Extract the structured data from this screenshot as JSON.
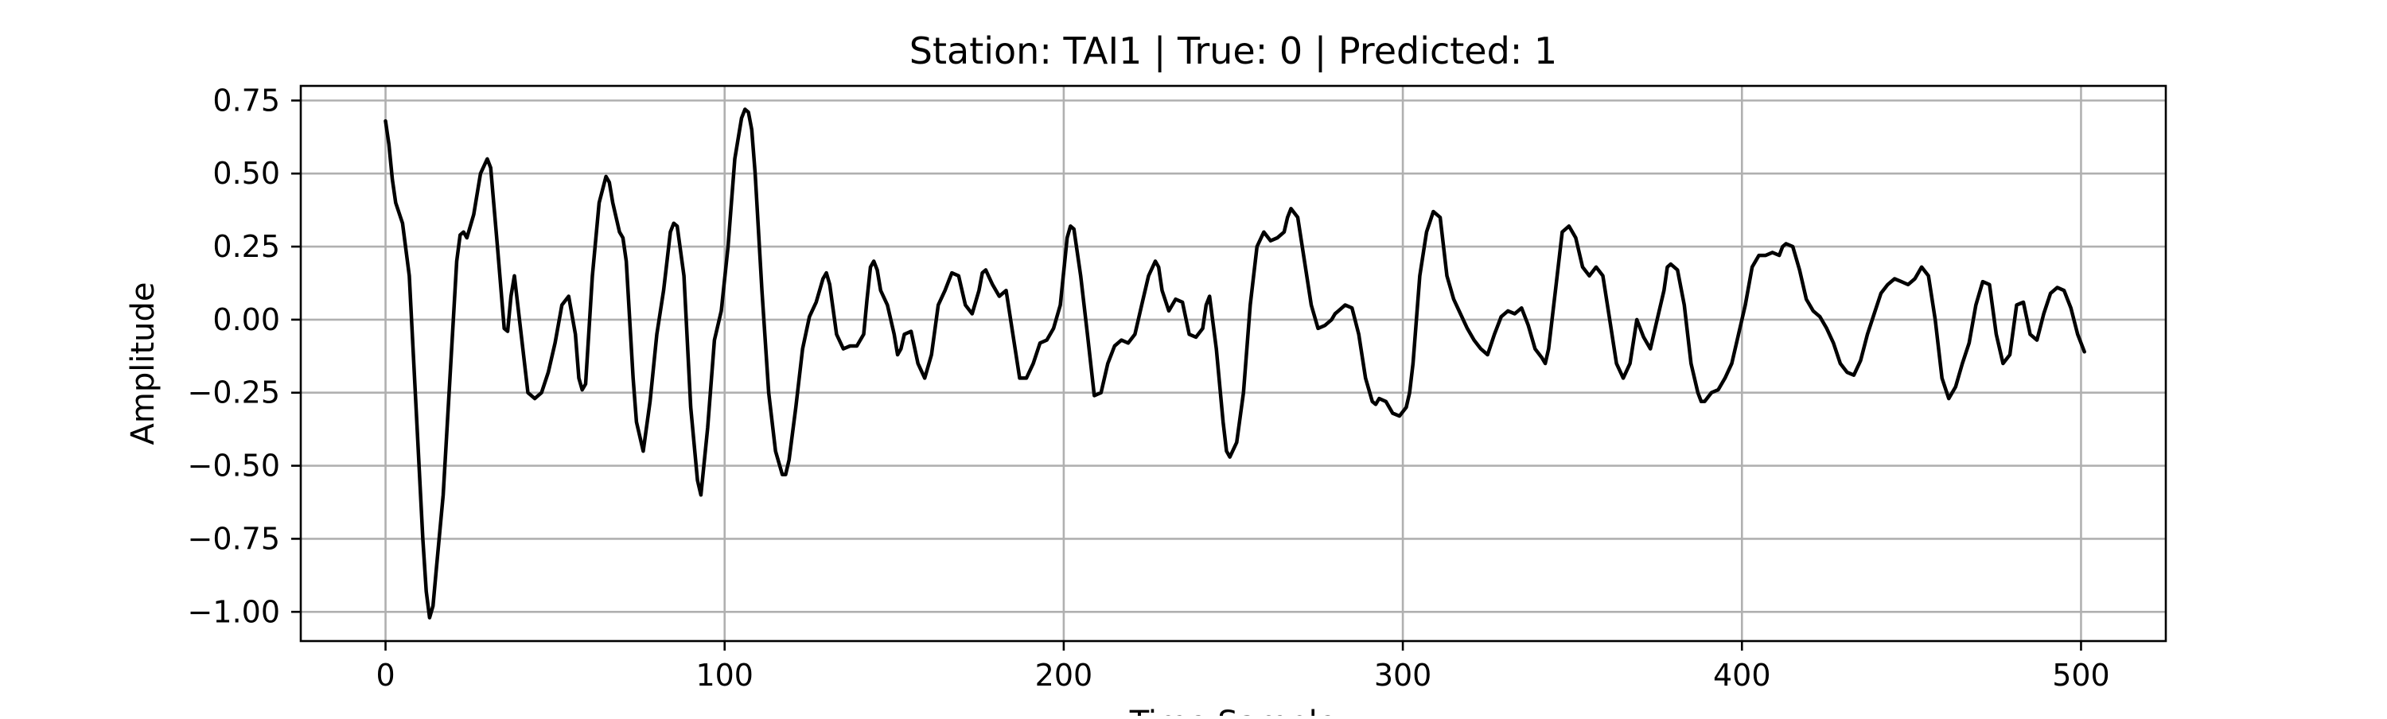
{
  "chart_data": {
    "type": "line",
    "title": "Station: TAI1 | True: 0 | Predicted: 1",
    "xlabel": "Time Sample",
    "ylabel": "Amplitude",
    "xlim": [
      -25,
      525
    ],
    "ylim": [
      -1.1,
      0.8
    ],
    "xticks": [
      0,
      100,
      200,
      300,
      400,
      500
    ],
    "xtick_labels": [
      "0",
      "100",
      "200",
      "300",
      "400",
      "500"
    ],
    "yticks": [
      0.75,
      0.5,
      0.25,
      0.0,
      -0.25,
      -0.5,
      -0.75,
      -1.0
    ],
    "ytick_labels": [
      "0.75",
      "0.50",
      "0.25",
      "0.00",
      "−0.25",
      "−0.50",
      "−0.75",
      "−1.00"
    ],
    "grid": true,
    "line_color": "#000000",
    "grid_color": "#b0b0b0",
    "series": [
      {
        "x": [
          0,
          1,
          2,
          3,
          5,
          7,
          9,
          11,
          12,
          13,
          14,
          15,
          17,
          19,
          21,
          22,
          23,
          24,
          26,
          28,
          30,
          31,
          33,
          35,
          36,
          37,
          38,
          40,
          42,
          44,
          46,
          48,
          50,
          52,
          54,
          56,
          57,
          58,
          59,
          61,
          63,
          65,
          66,
          67,
          69,
          70,
          71,
          72,
          73,
          74,
          76,
          78,
          80,
          82,
          83,
          84,
          85,
          86,
          88,
          90,
          92,
          93,
          95,
          97,
          99,
          101,
          103,
          105,
          106,
          107,
          108,
          109,
          111,
          113,
          115,
          117,
          118,
          119,
          121,
          123,
          125,
          127,
          129,
          130,
          131,
          133,
          135,
          137,
          139,
          141,
          142,
          143,
          144,
          145,
          146,
          148,
          150,
          151,
          152,
          153,
          155,
          157,
          159,
          161,
          163,
          165,
          166,
          167,
          169,
          171,
          173,
          175,
          176,
          177,
          179,
          181,
          183,
          185,
          187,
          189,
          191,
          193,
          195,
          197,
          199,
          201,
          202,
          203,
          205,
          207,
          209,
          211,
          213,
          215,
          217,
          219,
          221,
          223,
          225,
          227,
          228,
          229,
          231,
          233,
          235,
          237,
          239,
          241,
          242,
          243,
          245,
          247,
          248,
          249,
          251,
          253,
          255,
          257,
          259,
          261,
          263,
          265,
          266,
          267,
          269,
          271,
          273,
          275,
          277,
          279,
          280,
          281,
          283,
          285,
          287,
          289,
          291,
          292,
          293,
          295,
          297,
          299,
          301,
          302,
          303,
          305,
          307,
          309,
          311,
          313,
          315,
          317,
          319,
          321,
          323,
          325,
          327,
          329,
          331,
          333,
          335,
          337,
          339,
          341,
          342,
          343,
          345,
          347,
          349,
          351,
          353,
          355,
          357,
          359,
          361,
          363,
          365,
          367,
          369,
          371,
          373,
          375,
          377,
          378,
          379,
          381,
          383,
          385,
          387,
          388,
          389,
          391,
          393,
          395,
          397,
          399,
          401,
          403,
          405,
          407,
          409,
          411,
          412,
          413,
          415,
          417,
          419,
          421,
          423,
          425,
          427,
          429,
          431,
          433,
          435,
          437,
          439,
          441,
          443,
          445,
          447,
          449,
          451,
          453,
          455,
          457,
          459,
          461,
          463,
          465,
          467,
          469,
          471,
          473,
          475,
          477,
          479,
          481,
          483,
          485,
          487,
          489,
          491,
          493,
          495,
          497,
          499,
          501
        ],
        "values": [
          0.68,
          0.6,
          0.48,
          0.4,
          0.33,
          0.15,
          -0.3,
          -0.75,
          -0.93,
          -1.02,
          -0.98,
          -0.85,
          -0.6,
          -0.2,
          0.2,
          0.29,
          0.3,
          0.28,
          0.36,
          0.5,
          0.55,
          0.52,
          0.25,
          -0.03,
          -0.04,
          0.08,
          0.15,
          -0.05,
          -0.25,
          -0.27,
          -0.25,
          -0.18,
          -0.08,
          0.05,
          0.08,
          -0.05,
          -0.2,
          -0.24,
          -0.22,
          0.15,
          0.4,
          0.49,
          0.47,
          0.4,
          0.3,
          0.28,
          0.2,
          0.0,
          -0.2,
          -0.35,
          -0.45,
          -0.28,
          -0.05,
          0.1,
          0.2,
          0.3,
          0.33,
          0.32,
          0.15,
          -0.3,
          -0.55,
          -0.6,
          -0.37,
          -0.07,
          0.03,
          0.25,
          0.55,
          0.69,
          0.72,
          0.71,
          0.65,
          0.5,
          0.1,
          -0.25,
          -0.45,
          -0.53,
          -0.53,
          -0.48,
          -0.3,
          -0.1,
          0.01,
          0.06,
          0.14,
          0.16,
          0.12,
          -0.05,
          -0.1,
          -0.09,
          -0.09,
          -0.05,
          0.07,
          0.18,
          0.2,
          0.17,
          0.1,
          0.05,
          -0.05,
          -0.12,
          -0.1,
          -0.05,
          -0.04,
          -0.15,
          -0.2,
          -0.12,
          0.05,
          0.1,
          0.13,
          0.16,
          0.15,
          0.05,
          0.02,
          0.1,
          0.16,
          0.17,
          0.12,
          0.08,
          0.1,
          -0.05,
          -0.2,
          -0.2,
          -0.15,
          -0.08,
          -0.07,
          -0.03,
          0.05,
          0.28,
          0.32,
          0.31,
          0.15,
          -0.05,
          -0.26,
          -0.25,
          -0.15,
          -0.09,
          -0.07,
          -0.08,
          -0.05,
          0.05,
          0.15,
          0.2,
          0.18,
          0.1,
          0.03,
          0.07,
          0.06,
          -0.05,
          -0.06,
          -0.03,
          0.05,
          0.08,
          -0.1,
          -0.35,
          -0.45,
          -0.47,
          -0.42,
          -0.25,
          0.05,
          0.25,
          0.3,
          0.27,
          0.28,
          0.3,
          0.35,
          0.38,
          0.35,
          0.2,
          0.05,
          -0.03,
          -0.02,
          0.0,
          0.02,
          0.03,
          0.05,
          0.04,
          -0.05,
          -0.2,
          -0.28,
          -0.29,
          -0.27,
          -0.28,
          -0.32,
          -0.33,
          -0.3,
          -0.25,
          -0.15,
          0.15,
          0.3,
          0.37,
          0.35,
          0.15,
          0.07,
          0.02,
          -0.03,
          -0.07,
          -0.1,
          -0.12,
          -0.05,
          0.01,
          0.03,
          0.02,
          0.04,
          -0.02,
          -0.1,
          -0.13,
          -0.15,
          -0.1,
          0.1,
          0.3,
          0.32,
          0.28,
          0.18,
          0.15,
          0.18,
          0.15,
          0.0,
          -0.15,
          -0.2,
          -0.15,
          0.0,
          -0.06,
          -0.1,
          0.0,
          0.1,
          0.18,
          0.19,
          0.17,
          0.05,
          -0.15,
          -0.25,
          -0.28,
          -0.28,
          -0.25,
          -0.24,
          -0.2,
          -0.15,
          -0.05,
          0.05,
          0.18,
          0.22,
          0.22,
          0.23,
          0.22,
          0.25,
          0.26,
          0.25,
          0.17,
          0.07,
          0.03,
          0.01,
          -0.03,
          -0.08,
          -0.15,
          -0.18,
          -0.19,
          -0.14,
          -0.05,
          0.02,
          0.09,
          0.12,
          0.14,
          0.13,
          0.12,
          0.14,
          0.18,
          0.15,
          0.0,
          -0.2,
          -0.27,
          -0.23,
          -0.15,
          -0.08,
          0.05,
          0.13,
          0.12,
          -0.05,
          -0.15,
          -0.12,
          0.05,
          0.06,
          -0.05,
          -0.07,
          0.02,
          0.09,
          0.11,
          0.1,
          0.04,
          -0.05,
          -0.11
        ]
      }
    ]
  }
}
